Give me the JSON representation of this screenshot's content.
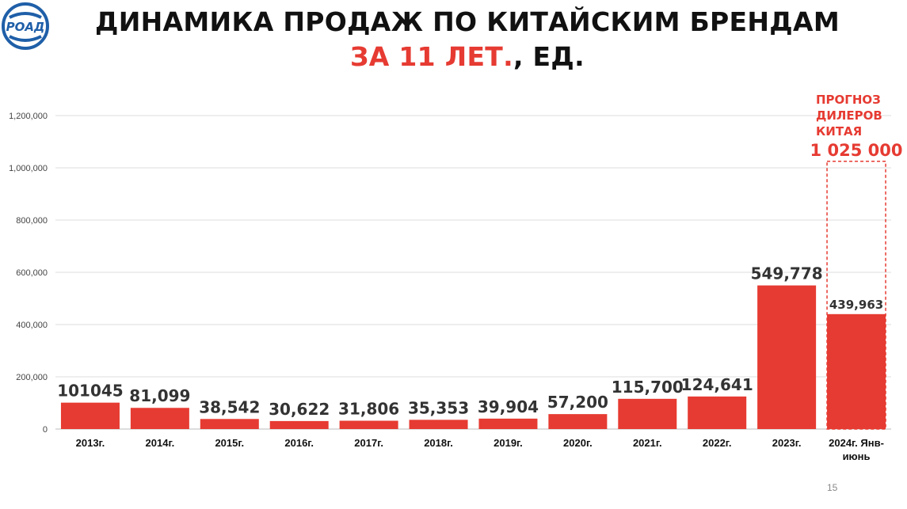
{
  "title": {
    "line1": "ДИНАМИКА ПРОДАЖ ПО КИТАЙСКИМ БРЕНДАМ",
    "line2_accent": "ЗА 11 ЛЕТ.",
    "line2_rest": ", ЕД."
  },
  "logo": {
    "text": "РОАД"
  },
  "page_number": "15",
  "colors": {
    "bar": "#e63b32",
    "accent": "#e63b32",
    "text": "#333333",
    "grid": "#dddddd"
  },
  "forecast": {
    "label_lines": [
      "ПРОГНОЗ",
      "ДИЛЕРОВ",
      "КИТАЯ"
    ],
    "value_label": "1 025 000",
    "value": 1025000
  },
  "chart_data": {
    "type": "bar",
    "title": "ДИНАМИКА ПРОДАЖ ПО КИТАЙСКИМ БРЕНДАМ ЗА 11 ЛЕТ., ЕД.",
    "categories": [
      "2013г.",
      "2014г.",
      "2015г.",
      "2016г.",
      "2017г.",
      "2018г.",
      "2019г.",
      "2020г.",
      "2021г.",
      "2022г.",
      "2023г.",
      "2024г. Янв-июнь"
    ],
    "category_lines": [
      [
        "2013г."
      ],
      [
        "2014г."
      ],
      [
        "2015г."
      ],
      [
        "2016г."
      ],
      [
        "2017г."
      ],
      [
        "2018г."
      ],
      [
        "2019г."
      ],
      [
        "2020г."
      ],
      [
        "2021г."
      ],
      [
        "2022г."
      ],
      [
        "2023г."
      ],
      [
        "2024г. Янв-",
        "июнь"
      ]
    ],
    "values": [
      101045,
      81099,
      38542,
      30622,
      31806,
      35353,
      39904,
      57200,
      115700,
      124641,
      549778,
      439963
    ],
    "value_labels": [
      "101045",
      "81,099",
      "38,542",
      "30,622",
      "31,806",
      "35,353",
      "39,904",
      "57,200",
      "115,700",
      "124,641",
      "549,778",
      "439,963"
    ],
    "ylim": [
      0,
      1200000
    ],
    "yticks": [
      0,
      200000,
      400000,
      600000,
      800000,
      1000000,
      1200000
    ],
    "ytick_labels": [
      "0",
      "200,000",
      "400,000",
      "600,000",
      "800,000",
      "1,000,000",
      "1,200,000"
    ],
    "xlabel": "",
    "ylabel": "",
    "grid": true,
    "legend": "none"
  }
}
